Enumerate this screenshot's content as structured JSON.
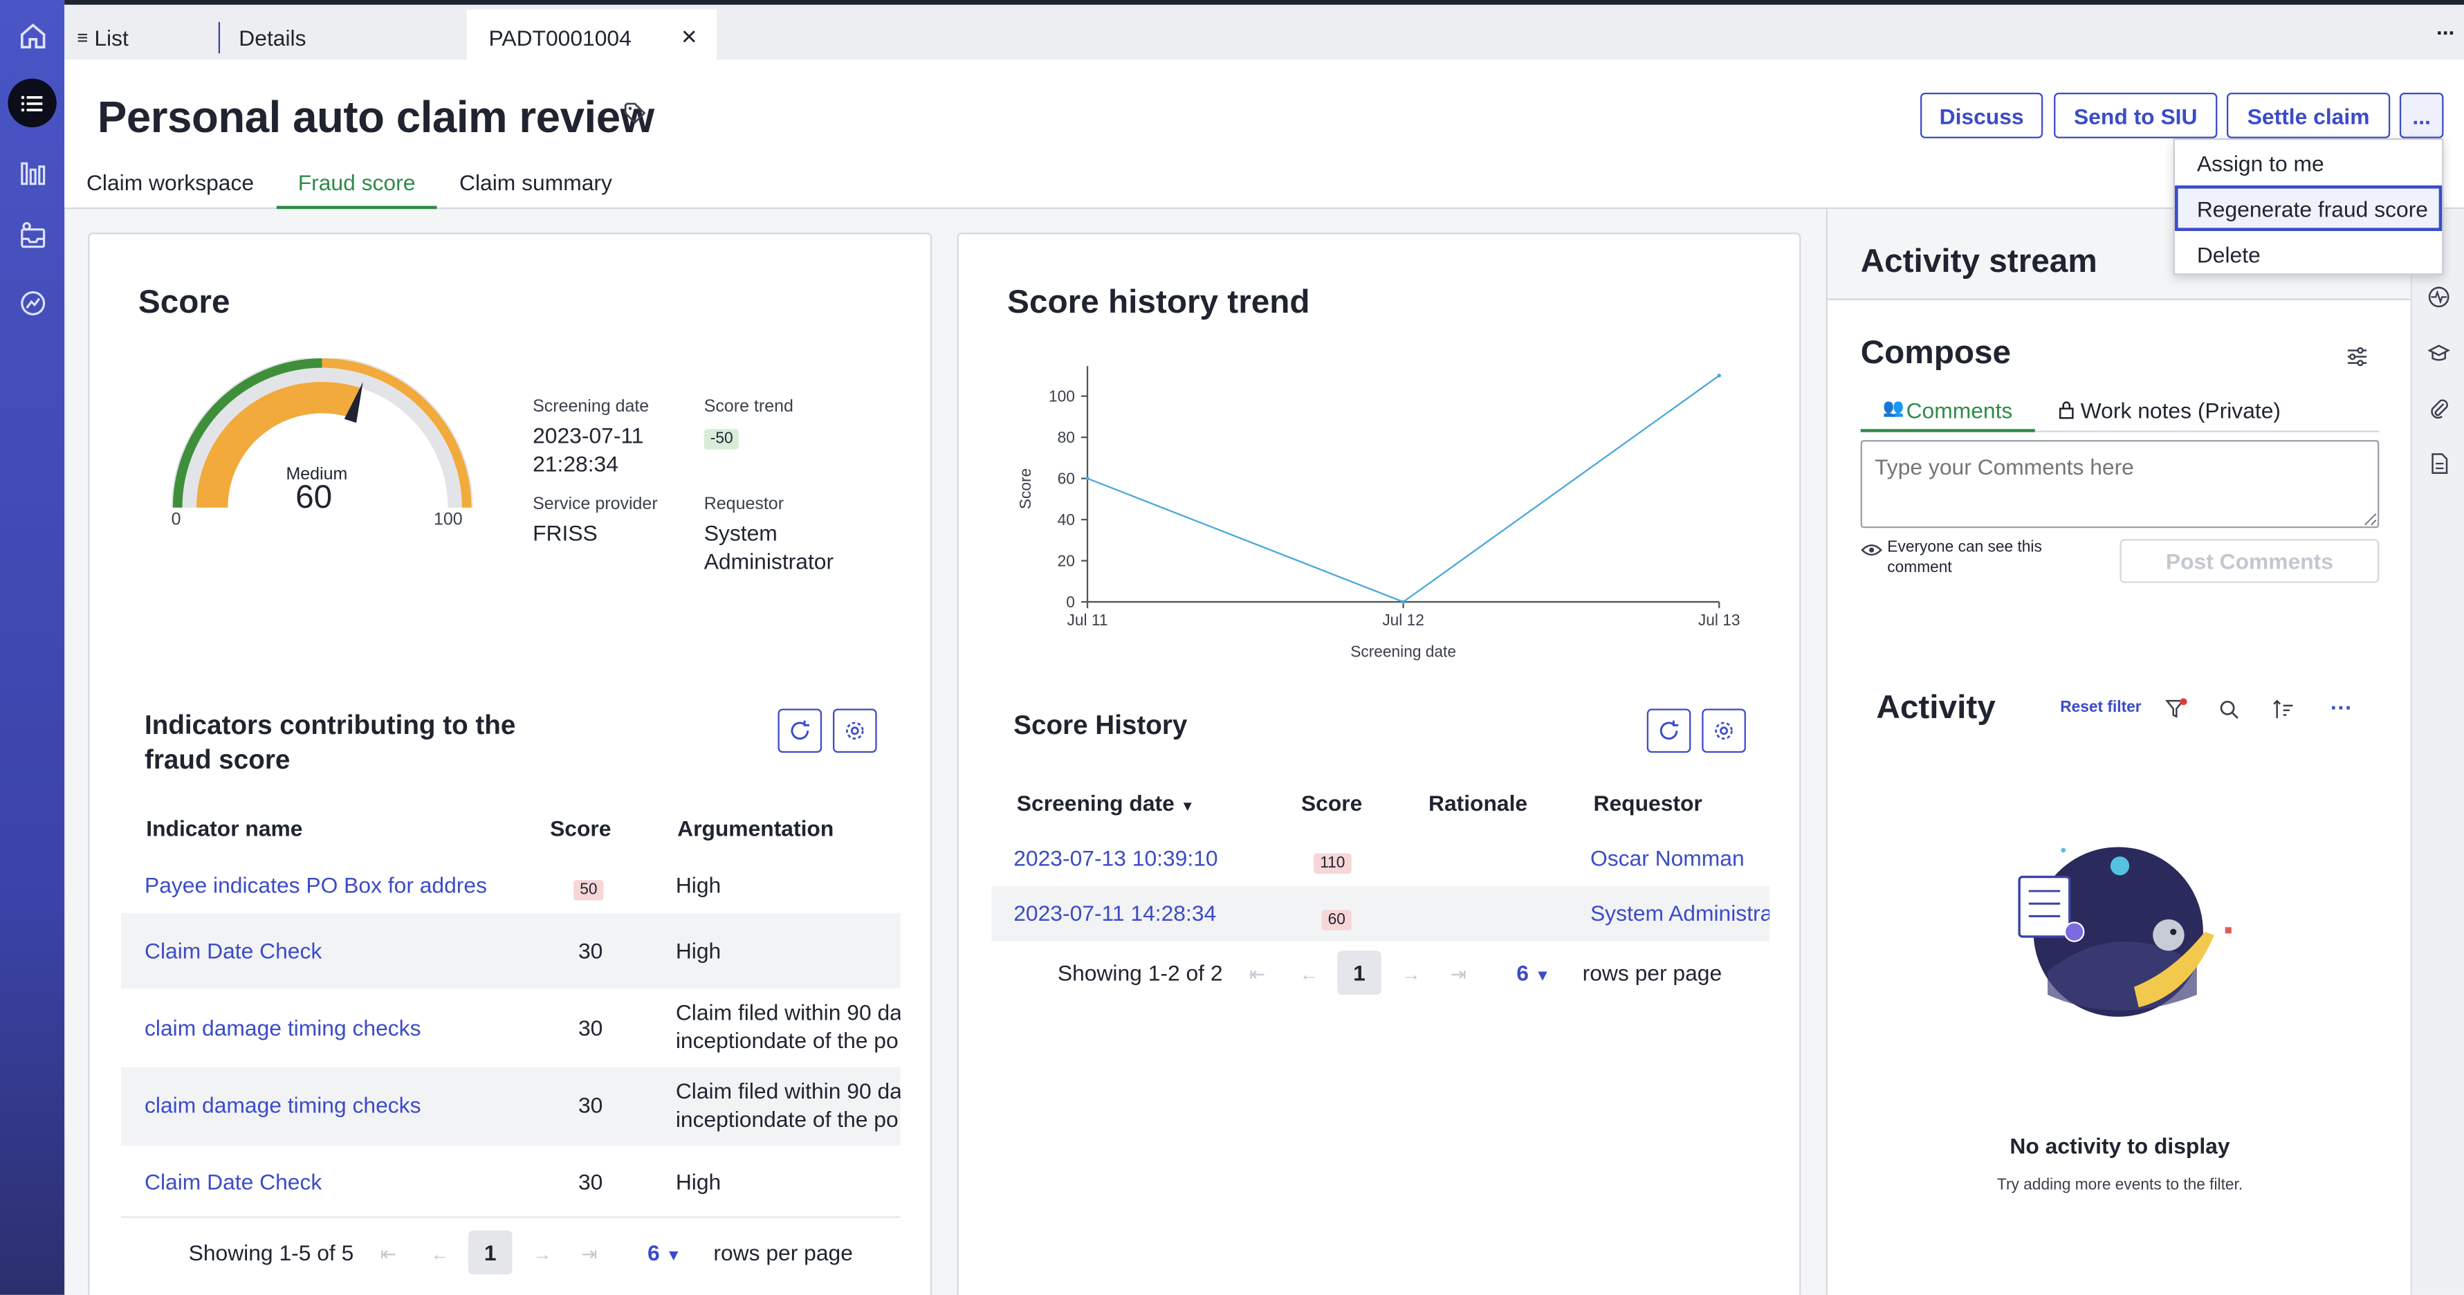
{
  "tabs": {
    "list": "List",
    "details": "Details",
    "record": "PADT0001004",
    "more": "..."
  },
  "header": {
    "title": "Personal auto claim review",
    "discuss": "Discuss",
    "send_siu": "Send to SIU",
    "settle": "Settle claim",
    "more": "..."
  },
  "subtabs": [
    "Claim workspace",
    "Fraud score",
    "Claim summary"
  ],
  "menu": [
    "Assign to me",
    "Regenerate fraud score",
    "Delete"
  ],
  "score": {
    "title": "Score",
    "gauge_level": "Medium",
    "gauge_value": "60",
    "gauge_min": "0",
    "gauge_max": "100",
    "screening_date_label": "Screening date",
    "screening_date": "2023-07-11",
    "screening_time": "21:28:34",
    "trend_label": "Score trend",
    "trend_value": "-50",
    "provider_label": "Service provider",
    "provider_value": "FRISS",
    "requestor_label": "Requestor",
    "requestor_value1": "System",
    "requestor_value2": "Administrator"
  },
  "indicators": {
    "title1": "Indicators contributing to the",
    "title2": "fraud score",
    "col_name": "Indicator name",
    "col_score": "Score",
    "col_arg": "Argumentation",
    "rows": [
      {
        "name": "Payee indicates PO Box for addres",
        "score": "50",
        "arg1": "High",
        "arg2": ""
      },
      {
        "name": "Claim Date Check",
        "score": "30",
        "arg1": "High",
        "arg2": ""
      },
      {
        "name": "claim damage timing checks",
        "score": "30",
        "arg1": "Claim filed within 90 da",
        "arg2": "inceptiondate of the po"
      },
      {
        "name": "claim damage timing checks",
        "score": "30",
        "arg1": "Claim filed within 90 da",
        "arg2": "inceptiondate of the po"
      },
      {
        "name": "Claim Date Check",
        "score": "30",
        "arg1": "High",
        "arg2": ""
      }
    ],
    "showing": "Showing 1-5 of 5",
    "page": "1",
    "rows_per_page_value": "6",
    "rows_per_page_label": "rows per page"
  },
  "trend": {
    "title": "Score history trend"
  },
  "chart_data": {
    "type": "line",
    "title": "Score history trend",
    "xlabel": "Screening date",
    "ylabel": "Score",
    "x": [
      "Jul 11",
      "Jul 12",
      "Jul 13"
    ],
    "x_ticks": [
      "Jul 11",
      "Jul 12",
      "Jul 13"
    ],
    "y_ticks": [
      0,
      20,
      40,
      60,
      80,
      100
    ],
    "ylim": [
      0,
      110
    ],
    "series": [
      {
        "values": [
          60,
          0,
          110
        ],
        "color": "#4aa8d8"
      }
    ],
    "grid": false,
    "legend": "none"
  },
  "history": {
    "title": "Score History",
    "col_date": "Screening date",
    "col_score": "Score",
    "col_rationale": "Rationale",
    "col_requestor": "Requestor",
    "rows": [
      {
        "date": "2023-07-13 10:39:10",
        "score": "110",
        "rationale": "",
        "requestor": "Oscar Nomman"
      },
      {
        "date": "2023-07-11 14:28:34",
        "score": "60",
        "rationale": "",
        "requestor": "System Administra"
      }
    ],
    "showing": "Showing 1-2 of 2",
    "page": "1",
    "rows_per_page_value": "6",
    "rows_per_page_label": "rows per page"
  },
  "activity": {
    "stream_title": "Activity stream",
    "compose_title": "Compose",
    "tab_comments": "Comments",
    "tab_worknotes": "Work notes (Private)",
    "placeholder": "Type your Comments here",
    "visibility1": "Everyone can see this",
    "visibility2": "comment",
    "post": "Post Comments",
    "activity_title": "Activity",
    "reset_filter": "Reset filter",
    "empty_title": "No activity to display",
    "empty_sub": "Try adding more events to the filter."
  },
  "colors": {
    "accent": "#3b4bc8",
    "active_tab": "#2f8a4a",
    "gauge_green": "#3f8f3a",
    "gauge_orange": "#f2aa3c",
    "gauge_grey": "#e2e4e8",
    "line": "#4aa8d8"
  }
}
